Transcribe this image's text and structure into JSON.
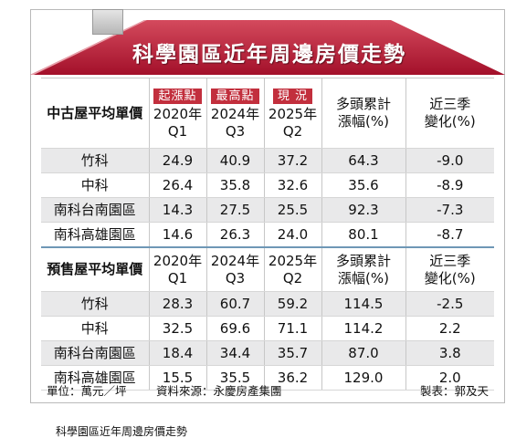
{
  "title": "科學園區近年周邊房價走勢",
  "tags": {
    "start": "起漲點",
    "peak": "最高點",
    "now": "現 況"
  },
  "sections": [
    {
      "label": "中古屋平均單價",
      "headers": [
        {
          "line1": "2020年",
          "line2": "Q1"
        },
        {
          "line1": "2024年",
          "line2": "Q3"
        },
        {
          "line1": "2025年",
          "line2": "Q2"
        },
        {
          "line1": "多頭累計",
          "line2": "漲幅(%)"
        },
        {
          "line1": "近三季",
          "line2": "變化(%)"
        }
      ],
      "rows": [
        {
          "region": "竹科",
          "values": [
            "24.9",
            "40.9",
            "37.2",
            "64.3",
            "-9.0"
          ]
        },
        {
          "region": "中科",
          "values": [
            "26.4",
            "35.8",
            "32.6",
            "35.6",
            "-8.9"
          ]
        },
        {
          "region": "南科台南園區",
          "values": [
            "14.3",
            "27.5",
            "25.5",
            "92.3",
            "-7.3"
          ]
        },
        {
          "region": "南科高雄園區",
          "values": [
            "14.6",
            "26.3",
            "24.0",
            "80.1",
            "-8.7"
          ]
        }
      ]
    },
    {
      "label": "預售屋平均單價",
      "headers": [
        {
          "line1": "2020年",
          "line2": "Q1"
        },
        {
          "line1": "2024年",
          "line2": "Q3"
        },
        {
          "line1": "2025年",
          "line2": "Q2"
        },
        {
          "line1": "多頭累計",
          "line2": "漲幅(%)"
        },
        {
          "line1": "近三季",
          "line2": "變化(%)"
        }
      ],
      "rows": [
        {
          "region": "竹科",
          "values": [
            "28.3",
            "60.7",
            "59.2",
            "114.5",
            "-2.5"
          ]
        },
        {
          "region": "中科",
          "values": [
            "32.5",
            "69.6",
            "71.1",
            "114.2",
            "2.2"
          ]
        },
        {
          "region": "南科台南園區",
          "values": [
            "18.4",
            "34.4",
            "35.7",
            "87.0",
            "3.8"
          ]
        },
        {
          "region": "南科高雄園區",
          "values": [
            "15.5",
            "35.5",
            "36.2",
            "129.0",
            "2.0"
          ]
        }
      ]
    }
  ],
  "footer": {
    "unit": "單位：萬元／坪",
    "source": "資料來源：永慶房產集團",
    "maker": "製表：郭及天"
  },
  "caption": "科學園區近年周邊房價走勢",
  "colors": {
    "roof": "#b7162e",
    "roof_light": "#d64a5c",
    "tag": "#c22f3d",
    "divider": "#6e97b6",
    "stripe": "#e9e9ea"
  }
}
